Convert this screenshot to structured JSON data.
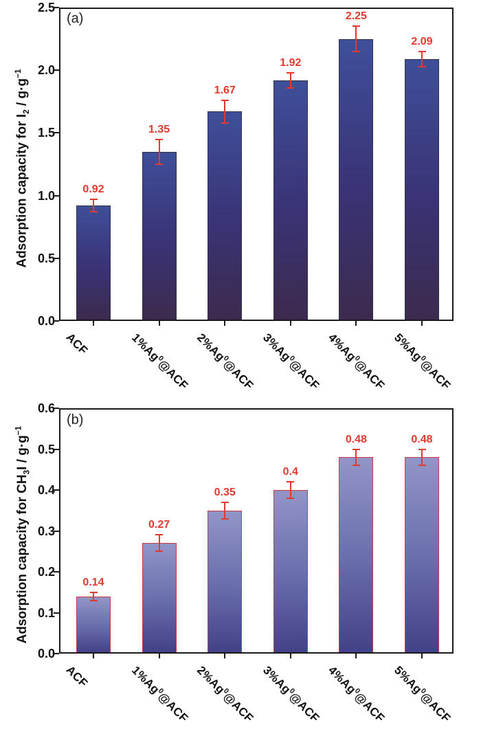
{
  "figure": {
    "background": "#ffffff",
    "axis_color": "#1a1a1a"
  },
  "chart_data": [
    {
      "type": "bar",
      "panel_label": "(a)",
      "title": "",
      "xlabel": "",
      "ylabel": "Adsorption capacity for I₂ / g·g⁻¹",
      "categories": [
        "ACF",
        "1%Ag⁰@ACF",
        "2%Ag⁰@ACF",
        "3%Ag⁰@ACF",
        "4%Ag⁰@ACF",
        "5%Ag⁰@ACF"
      ],
      "values": [
        0.92,
        1.35,
        1.67,
        1.92,
        2.25,
        2.09
      ],
      "value_labels": [
        "0.92",
        "1.35",
        "1.67",
        "1.92",
        "2.25",
        "2.09"
      ],
      "errors": [
        0.05,
        0.1,
        0.09,
        0.06,
        0.1,
        0.06
      ],
      "ylim": [
        0,
        2.5
      ],
      "yticks": [
        0,
        0.5,
        1.0,
        1.5,
        2.0,
        2.5
      ],
      "ytick_labels": [
        "0.0",
        "0.5",
        "1.0",
        "1.5",
        "2.0",
        "2.5"
      ],
      "grid": false,
      "legend": "none",
      "style": {
        "bar_gradient_top": "#3f4f99",
        "bar_gradient_mid": "#3a3377",
        "bar_gradient_bottom": "#3c2b4e",
        "bar_border": "rgba(50,48,66,0.9)",
        "error_color": "#e23a2e",
        "value_label_color": "#e23a2e"
      }
    },
    {
      "type": "bar",
      "panel_label": "(b)",
      "title": "",
      "xlabel": "",
      "ylabel": "Adsorption capacity for CH₃I / g·g⁻¹",
      "categories": [
        "ACF",
        "1%Ag⁰@ACF",
        "2%Ag⁰@ACF",
        "3%Ag⁰@ACF",
        "4%Ag⁰@ACF",
        "5%Ag⁰@ACF"
      ],
      "values": [
        0.14,
        0.27,
        0.35,
        0.4,
        0.48,
        0.48
      ],
      "value_labels": [
        "0.14",
        "0.27",
        "0.35",
        "0.4",
        "0.48",
        "0.48"
      ],
      "errors": [
        0.01,
        0.02,
        0.02,
        0.02,
        0.02,
        0.02
      ],
      "ylim": [
        0,
        0.6
      ],
      "yticks": [
        0,
        0.1,
        0.2,
        0.3,
        0.4,
        0.5,
        0.6
      ],
      "ytick_labels": [
        "0.0",
        "0.1",
        "0.2",
        "0.3",
        "0.4",
        "0.5",
        "0.6"
      ],
      "grid": false,
      "legend": "none",
      "style": {
        "bar_gradient_top": "#9195c7",
        "bar_gradient_mid": "#6a6eac",
        "bar_gradient_bottom": "#424189",
        "bar_border": "#cb3a44",
        "error_color": "#e23a2e",
        "value_label_color": "#e23a2e"
      }
    }
  ]
}
